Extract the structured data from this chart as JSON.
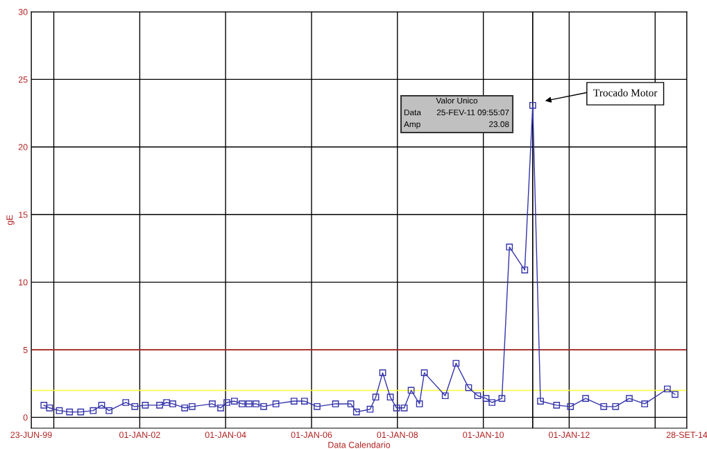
{
  "chart_data": {
    "type": "line",
    "xlabel": "Data Calendario",
    "ylabel": "gE",
    "xlim": [
      "1999-06-23",
      "2014-09-28"
    ],
    "ylim": [
      -0.8,
      30
    ],
    "xticks": [
      {
        "value": "1999-06-23",
        "label": "23-JUN-99"
      },
      {
        "value": "2000-01-01",
        "label": null
      },
      {
        "value": "2002-01-01",
        "label": "01-JAN-02"
      },
      {
        "value": "2004-01-01",
        "label": "01-JAN-04"
      },
      {
        "value": "2006-01-01",
        "label": "01-JAN-06"
      },
      {
        "value": "2008-01-01",
        "label": "01-JAN-08"
      },
      {
        "value": "2010-01-01",
        "label": "01-JAN-10"
      },
      {
        "value": "2012-01-01",
        "label": "01-JAN-12"
      },
      {
        "value": "2014-01-01",
        "label": null
      },
      {
        "value": "2014-09-28",
        "label": "28-SET-14"
      }
    ],
    "yticks": [
      0,
      5,
      10,
      15,
      20,
      25,
      30
    ],
    "grid": true,
    "marker": "square",
    "line_style": "solid",
    "x": [
      "1999-10-09",
      "1999-11-26",
      "2000-02-17",
      "2000-05-14",
      "2000-08-17",
      "2000-12-01",
      "2001-02-11",
      "2001-04-15",
      "2001-09-04",
      "2001-11-20",
      "2002-02-17",
      "2002-06-19",
      "2002-08-17",
      "2002-10-09",
      "2003-01-18",
      "2003-03-22",
      "2003-09-10",
      "2003-11-20",
      "2004-01-12",
      "2004-03-16",
      "2004-05-20",
      "2004-07-18",
      "2004-09-16",
      "2004-11-20",
      "2005-03-04",
      "2005-08-05",
      "2005-11-02",
      "2006-02-17",
      "2006-07-24",
      "2006-12-01",
      "2007-01-18",
      "2007-05-14",
      "2007-07-01",
      "2007-08-29",
      "2007-11-02",
      "2007-12-25",
      "2008-02-28",
      "2008-04-27",
      "2008-07-07",
      "2008-08-17",
      "2009-02-11",
      "2009-05-14",
      "2009-08-29",
      "2009-11-14",
      "2010-01-24",
      "2010-03-16",
      "2010-06-08",
      "2010-08-11",
      "2010-12-19",
      "2011-02-25",
      "2011-05-02",
      "2011-09-16",
      "2012-01-12",
      "2012-05-20",
      "2012-10-21",
      "2013-01-30",
      "2013-05-26",
      "2013-10-04",
      "2014-04-15",
      "2014-06-19"
    ],
    "series": [
      {
        "color": "#3333aa",
        "values": [
          0.9,
          0.7,
          0.5,
          0.4,
          0.4,
          0.5,
          0.9,
          0.5,
          1.1,
          0.8,
          0.9,
          0.9,
          1.1,
          1.0,
          0.7,
          0.8,
          1.0,
          0.7,
          1.1,
          1.2,
          1.0,
          1.0,
          1.0,
          0.8,
          1.0,
          1.2,
          1.2,
          0.8,
          1.0,
          1.0,
          0.4,
          0.6,
          1.5,
          3.3,
          1.5,
          0.7,
          0.7,
          2.0,
          1.0,
          3.3,
          1.6,
          4.0,
          2.2,
          1.6,
          1.4,
          1.1,
          1.4,
          12.6,
          10.9,
          23.08,
          1.2,
          0.9,
          0.8,
          1.4,
          0.8,
          0.8,
          1.4,
          1.0,
          2.1,
          1.7
        ]
      }
    ],
    "ref_lines": [
      {
        "axis": "y",
        "value": 5,
        "color": "#cc3333"
      },
      {
        "axis": "y",
        "value": 2,
        "color": "#ffff33"
      },
      {
        "axis": "x",
        "value": "2011-02-25",
        "color": "#000000"
      }
    ],
    "annotations": [
      "Trocado Motor",
      "Valor Unico",
      "Data",
      "Amp",
      "25-FEV-11 09:55:07",
      "23.08"
    ]
  }
}
